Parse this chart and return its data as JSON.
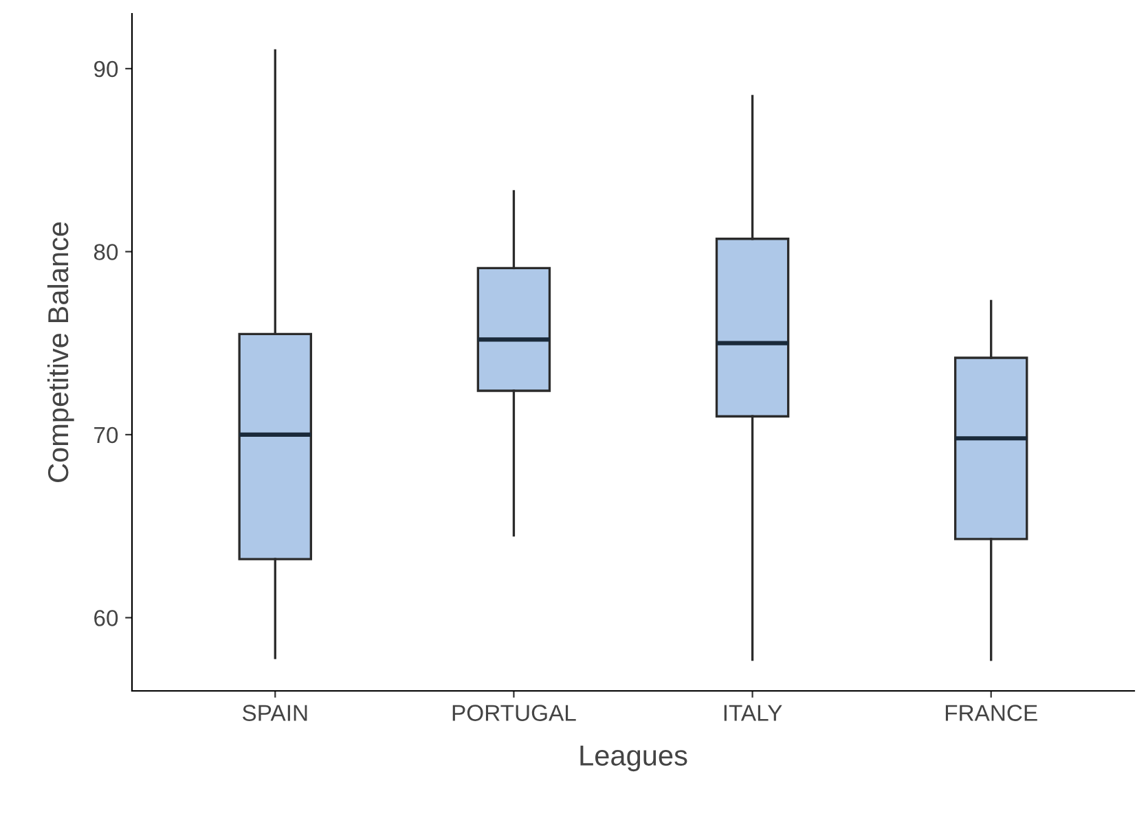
{
  "chart_data": {
    "type": "box",
    "xlabel": "Leagues",
    "ylabel": "Competitive Balance",
    "categories": [
      "SPAIN",
      "PORTUGAL",
      "ITALY",
      "FRANCE"
    ],
    "color": "#aec8e8",
    "boxes": [
      {
        "low": 57.8,
        "q1": 63.2,
        "median": 70.0,
        "q3": 75.5,
        "high": 91.0
      },
      {
        "low": 64.5,
        "q1": 72.4,
        "median": 75.2,
        "q3": 79.1,
        "high": 83.3
      },
      {
        "low": 57.7,
        "q1": 71.0,
        "median": 75.0,
        "q3": 80.7,
        "high": 88.5
      },
      {
        "low": 57.7,
        "q1": 64.3,
        "median": 69.8,
        "q3": 74.2,
        "high": 77.3
      }
    ],
    "ylim": [
      56,
      93
    ],
    "yticks": [
      60,
      70,
      80,
      90
    ],
    "grid": false,
    "legend": false
  }
}
